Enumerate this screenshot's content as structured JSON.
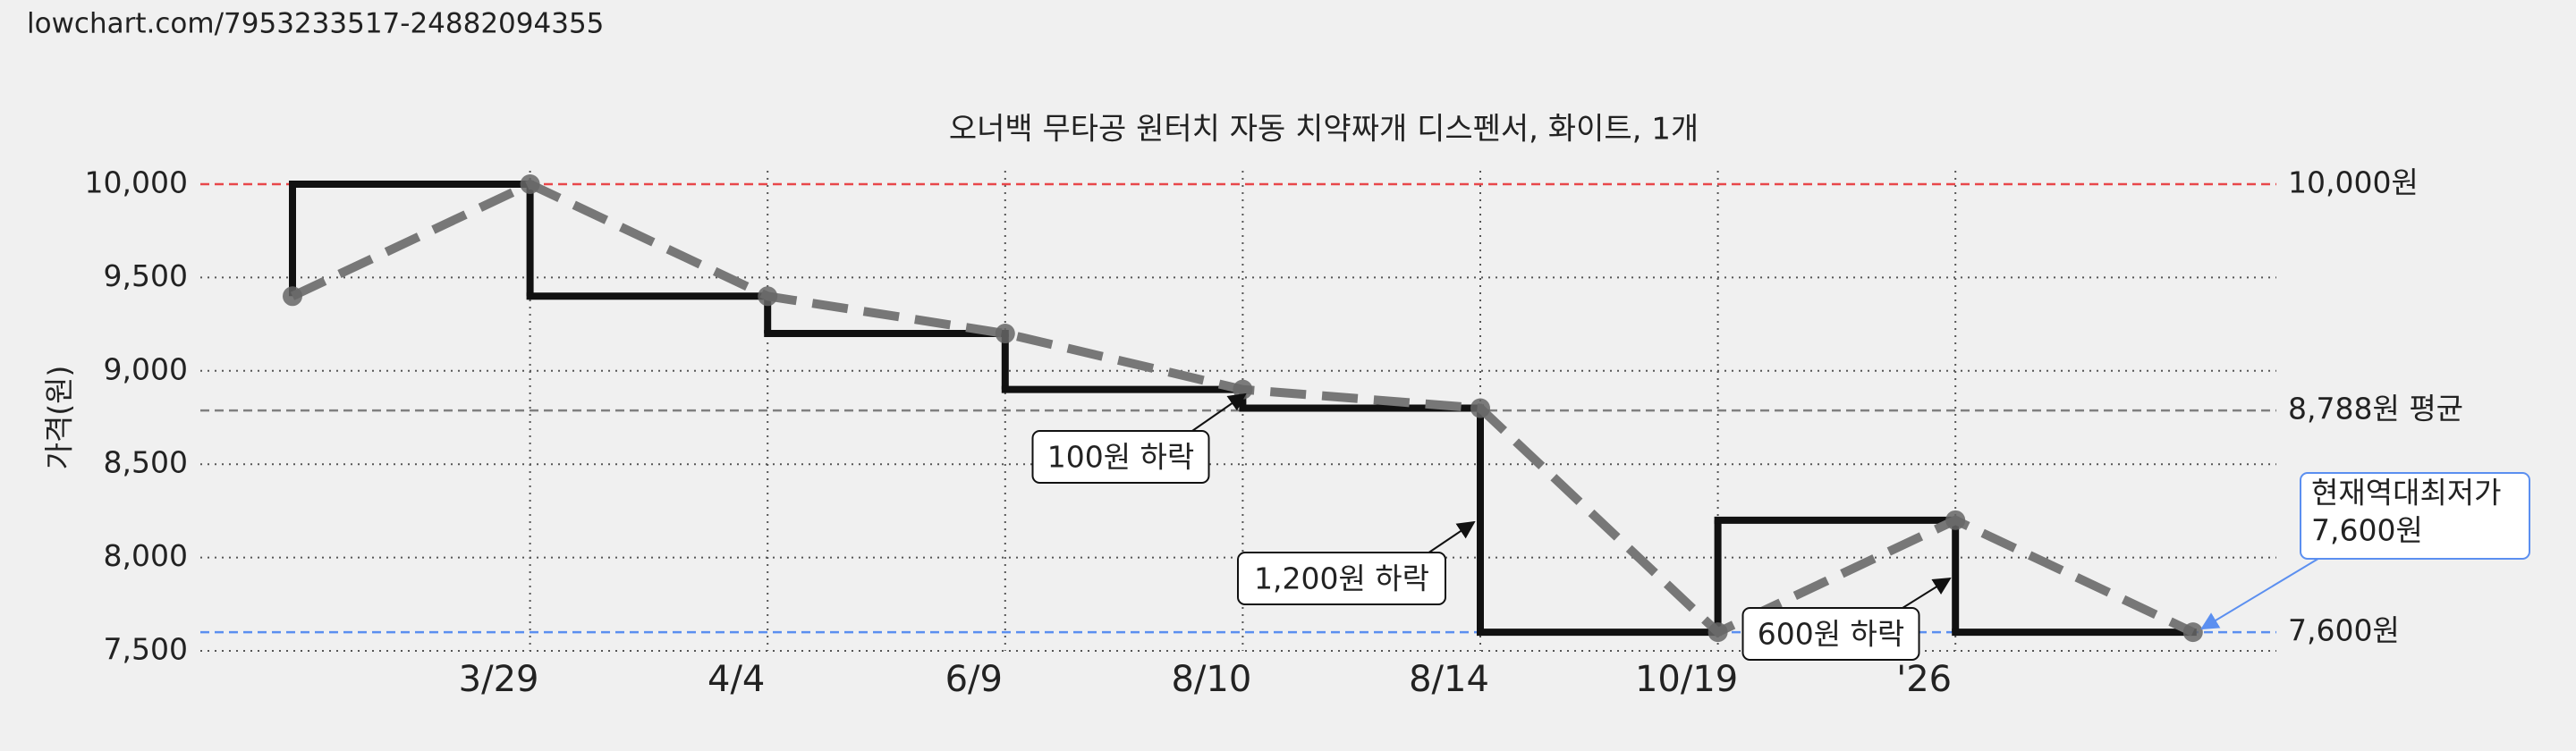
{
  "url": "lowchart.com/7953233517-24882094355",
  "chart_data": {
    "type": "line",
    "title": "오너백 무타공 원터치 자동 치약짜개 디스펜서, 화이트, 1개",
    "y_label": "가격(원)",
    "categories": [
      null,
      "3/29",
      "4/4",
      "6/9",
      "8/10",
      "8/14",
      "10/19",
      "'26",
      null
    ],
    "series": [
      {
        "color": "#777777",
        "values": [
          9400,
          10000,
          9400,
          9200,
          8900,
          8800,
          7600,
          8200,
          7600
        ]
      }
    ],
    "step_color": "#111111",
    "ylim": [
      7500,
      10000
    ],
    "yticks": [
      {
        "value": 7500,
        "label": "7,500"
      },
      {
        "value": 8000,
        "label": "8,000"
      },
      {
        "value": 8500,
        "label": "8,500"
      },
      {
        "value": 9000,
        "label": "9,000"
      },
      {
        "value": 9500,
        "label": "9,500"
      },
      {
        "value": 10000,
        "label": "10,000"
      }
    ],
    "grid": true,
    "reference_lines": [
      {
        "value": 10000,
        "label": "10,000원",
        "color": "#e8474a"
      },
      {
        "value": 8788,
        "label": "8,788원 평균",
        "color": "#808080"
      },
      {
        "value": 7600,
        "label": "7,600원",
        "color": "#5b8ff0"
      }
    ],
    "annotations": [
      "100원 하락",
      "1,200원 하락",
      "600원 하락"
    ],
    "current_low": {
      "lines": [
        "현재역대최저가",
        "7,600원"
      ],
      "color": "#5b8ff0"
    }
  }
}
